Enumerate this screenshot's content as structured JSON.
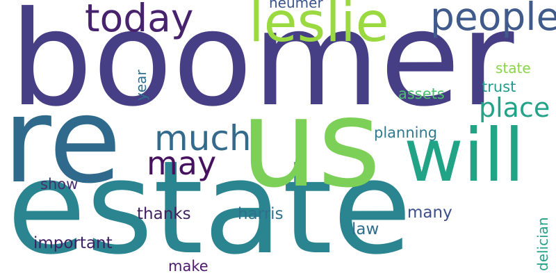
{
  "words": [
    {
      "text": "boomer",
      "color": "#463f85"
    },
    {
      "text": "estate",
      "color": "#2a8590"
    },
    {
      "text": "us",
      "color": "#7dd057"
    },
    {
      "text": "re",
      "color": "#2f6a8d"
    },
    {
      "text": "will",
      "color": "#21a485"
    },
    {
      "text": "leslie",
      "color": "#9ad93f"
    },
    {
      "text": "today",
      "color": "#48236d"
    },
    {
      "text": "people",
      "color": "#3f5a8b"
    },
    {
      "text": "much",
      "color": "#346a8c"
    },
    {
      "text": "may",
      "color": "#46115f"
    },
    {
      "text": "place",
      "color": "#23a289"
    },
    {
      "text": "neumer",
      "color": "#3a538a"
    },
    {
      "text": "state",
      "color": "#8ad34a"
    },
    {
      "text": "trust",
      "color": "#219a8b"
    },
    {
      "text": "assets",
      "color": "#4ac16c"
    },
    {
      "text": "year",
      "color": "#2d6f8e"
    },
    {
      "text": "planning",
      "color": "#2d7b8e"
    },
    {
      "text": "show",
      "color": "#44306f"
    },
    {
      "text": "thanks",
      "color": "#40215e"
    },
    {
      "text": "harris",
      "color": "#2f708d"
    },
    {
      "text": "many",
      "color": "#3c4f8a"
    },
    {
      "text": "law",
      "color": "#2c6d8e"
    },
    {
      "text": "important",
      "color": "#3d1f63"
    },
    {
      "text": "make",
      "color": "#4b1a6a"
    },
    {
      "text": "delician",
      "color": "#22a287"
    }
  ]
}
